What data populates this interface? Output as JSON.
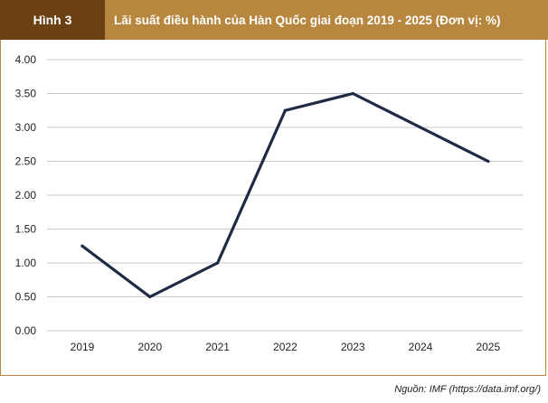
{
  "header": {
    "figure_label": "Hình 3",
    "title": "Lãi suất điều hành của Hàn Quốc giai đoạn 2019 - 2025 (Đơn vị: %)"
  },
  "source": "Nguồn: IMF (https://data.imf.org/)",
  "colors": {
    "label_bg": "#6b4013",
    "title_bg": "#b8873f",
    "line": "#1f2a44",
    "grid": "#c8c8c8"
  },
  "chart_data": {
    "type": "line",
    "categories": [
      "2019",
      "2020",
      "2021",
      "2022",
      "2023",
      "2024",
      "2025"
    ],
    "series": [
      {
        "values": [
          1.25,
          0.5,
          1.0,
          3.25,
          3.5,
          3.0,
          2.5
        ]
      }
    ],
    "yticks": [
      "0.00",
      "0.50",
      "1.00",
      "1.50",
      "2.00",
      "2.50",
      "3.00",
      "3.50",
      "4.00"
    ],
    "ylim": [
      0,
      4
    ],
    "grid": true,
    "legend": "none",
    "title": "",
    "xlabel": "",
    "ylabel": ""
  }
}
